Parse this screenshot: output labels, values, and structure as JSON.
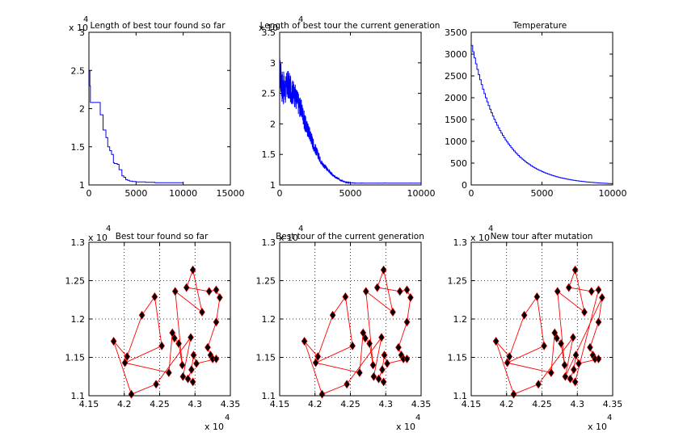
{
  "colors": {
    "background": "#ffffff",
    "axis": "#000000",
    "line_series": "#0000ff",
    "tour_edge": "#ff0000",
    "city_marker": "#000000",
    "grid": "#000000"
  },
  "chart_data": [
    {
      "type": "line",
      "title": "Length of best tour found so far",
      "exponent_label": "x 10",
      "exponent_power": "4",
      "xlim": [
        0,
        15000
      ],
      "ylim": [
        1,
        3
      ],
      "xticks": [
        0,
        5000,
        10000,
        15000
      ],
      "yticks": [
        1,
        1.5,
        2,
        2.5,
        3
      ],
      "grid": false,
      "series": [
        {
          "style": "step",
          "x": [
            0,
            100,
            150,
            500,
            900,
            1200,
            1500,
            1800,
            2000,
            2200,
            2400,
            2600,
            2700,
            3000,
            3200,
            3500,
            3700,
            3900,
            4100,
            4300,
            4600,
            5000,
            6000,
            7000,
            8000,
            9000,
            10000
          ],
          "y": [
            2.5,
            2.3,
            2.08,
            2.08,
            2.08,
            1.92,
            1.72,
            1.62,
            1.5,
            1.45,
            1.4,
            1.29,
            1.28,
            1.27,
            1.2,
            1.12,
            1.1,
            1.07,
            1.06,
            1.05,
            1.045,
            1.04,
            1.035,
            1.03,
            1.03,
            1.03,
            1.03
          ]
        }
      ]
    },
    {
      "type": "line",
      "title": "Length of best tour the current generation",
      "exponent_label": "x 10",
      "exponent_power": "4",
      "xlim": [
        0,
        10000
      ],
      "ylim": [
        1,
        3.5
      ],
      "xticks": [
        0,
        5000,
        10000
      ],
      "yticks": [
        1,
        1.5,
        2,
        2.5,
        3,
        3.5
      ],
      "grid": false,
      "series": [
        {
          "style": "noisy",
          "x": [
            0,
            200,
            400,
            600,
            800,
            1000,
            1200,
            1400,
            1600,
            1800,
            2000,
            2200,
            2400,
            2600,
            2800,
            3000,
            3200,
            3400,
            3600,
            3800,
            4000,
            4200,
            4400,
            4600,
            4800,
            5000,
            5500,
            6000,
            7000,
            8000,
            9000,
            10000
          ],
          "y": [
            2.85,
            2.6,
            2.55,
            2.65,
            2.55,
            2.5,
            2.4,
            2.3,
            2.2,
            2.0,
            1.9,
            1.8,
            1.65,
            1.55,
            1.45,
            1.35,
            1.3,
            1.25,
            1.2,
            1.15,
            1.12,
            1.09,
            1.07,
            1.05,
            1.04,
            1.035,
            1.03,
            1.03,
            1.03,
            1.03,
            1.03,
            1.03
          ],
          "noise": [
            0.28,
            0.3,
            0.25,
            0.25,
            0.22,
            0.2,
            0.2,
            0.18,
            0.15,
            0.15,
            0.13,
            0.12,
            0.1,
            0.08,
            0.06,
            0.05,
            0.04,
            0.03,
            0.02,
            0.02,
            0.015,
            0.01,
            0.01,
            0.005,
            0.005,
            0.003,
            0.002,
            0.002,
            0.002,
            0.002,
            0.002,
            0.002
          ]
        }
      ]
    },
    {
      "type": "line",
      "title": "Temperature",
      "xlim": [
        0,
        10000
      ],
      "ylim": [
        0,
        3500
      ],
      "xticks": [
        0,
        5000,
        10000
      ],
      "yticks": [
        0,
        500,
        1000,
        1500,
        2000,
        2500,
        3000,
        3500
      ],
      "grid": false,
      "series": [
        {
          "style": "exponential-step",
          "initial": 3200,
          "decay_per_step": 0.954,
          "step_size": 100,
          "x_end": 10000
        }
      ]
    },
    {
      "type": "scatter",
      "title": "Best tour found so far",
      "exponent_label": "x 10",
      "exponent_power": "4",
      "xlim": [
        4.15,
        4.35
      ],
      "ylim": [
        1.1,
        1.3
      ],
      "xticks": [
        4.15,
        4.2,
        4.25,
        4.3,
        4.35
      ],
      "yticks": [
        1.1,
        1.15,
        1.2,
        1.25,
        1.3
      ],
      "xtick_labels": [
        "4.15",
        "4.2",
        "4.25",
        "4.3",
        "4.35"
      ],
      "ytick_labels": [
        "1.1",
        "1.15",
        "1.2",
        "1.25",
        "1.3"
      ],
      "grid": true,
      "tour": [
        0,
        3,
        4,
        5,
        6,
        1,
        7,
        8,
        10,
        11,
        12,
        9,
        15,
        14,
        13,
        16,
        17,
        18,
        19,
        20,
        21,
        22,
        23,
        24,
        25,
        26,
        27,
        28,
        29,
        30,
        31,
        2,
        0
      ]
    },
    {
      "type": "scatter",
      "title": "Best tour of the current generation",
      "exponent_label": "x 10",
      "exponent_power": "4",
      "xlim": [
        4.15,
        4.35
      ],
      "ylim": [
        1.1,
        1.3
      ],
      "xticks": [
        4.15,
        4.2,
        4.25,
        4.3,
        4.35
      ],
      "yticks": [
        1.1,
        1.15,
        1.2,
        1.25,
        1.3
      ],
      "xtick_labels": [
        "4.15",
        "4.2",
        "4.25",
        "4.3",
        "4.35"
      ],
      "ytick_labels": [
        "1.1",
        "1.15",
        "1.2",
        "1.25",
        "1.3"
      ],
      "grid": true,
      "tour": [
        0,
        3,
        4,
        5,
        6,
        1,
        7,
        8,
        10,
        11,
        12,
        9,
        15,
        14,
        13,
        16,
        17,
        18,
        19,
        20,
        21,
        22,
        23,
        24,
        25,
        26,
        27,
        28,
        29,
        30,
        31,
        2,
        0
      ]
    },
    {
      "type": "scatter",
      "title": "New tour after mutation",
      "exponent_label": "x 10",
      "exponent_power": "4",
      "xlim": [
        4.15,
        4.35
      ],
      "ylim": [
        1.1,
        1.3
      ],
      "xticks": [
        4.15,
        4.2,
        4.25,
        4.3,
        4.35
      ],
      "yticks": [
        1.1,
        1.15,
        1.2,
        1.25,
        1.3
      ],
      "xtick_labels": [
        "4.15",
        "4.2",
        "4.25",
        "4.3",
        "4.35"
      ],
      "ytick_labels": [
        "1.1",
        "1.15",
        "1.2",
        "1.25",
        "1.3"
      ],
      "grid": true,
      "tour": [
        0,
        3,
        4,
        5,
        6,
        1,
        7,
        8,
        10,
        11,
        12,
        9,
        15,
        14,
        13,
        16,
        17,
        28,
        27,
        26,
        25,
        24,
        23,
        22,
        21,
        20,
        19,
        18,
        29,
        30,
        31,
        2,
        0
      ]
    }
  ],
  "cities": [
    [
      4.185,
      1.171
    ],
    [
      4.201,
      1.143
    ],
    [
      4.21,
      1.102
    ],
    [
      4.204,
      1.151
    ],
    [
      4.225,
      1.205
    ],
    [
      4.243,
      1.229
    ],
    [
      4.253,
      1.165
    ],
    [
      4.263,
      1.13
    ],
    [
      4.268,
      1.182
    ],
    [
      4.272,
      1.236
    ],
    [
      4.271,
      1.175
    ],
    [
      4.277,
      1.168
    ],
    [
      4.282,
      1.14
    ],
    [
      4.288,
      1.241
    ],
    [
      4.297,
      1.264
    ],
    [
      4.31,
      1.209
    ],
    [
      4.32,
      1.236
    ],
    [
      4.33,
      1.238
    ],
    [
      4.335,
      1.228
    ],
    [
      4.33,
      1.196
    ],
    [
      4.318,
      1.163
    ],
    [
      4.322,
      1.153
    ],
    [
      4.325,
      1.148
    ],
    [
      4.33,
      1.148
    ],
    [
      4.302,
      1.142
    ],
    [
      4.298,
      1.153
    ],
    [
      4.295,
      1.134
    ],
    [
      4.29,
      1.122
    ],
    [
      4.297,
      1.118
    ],
    [
      4.283,
      1.125
    ],
    [
      4.294,
      1.176
    ],
    [
      4.245,
      1.115
    ]
  ]
}
